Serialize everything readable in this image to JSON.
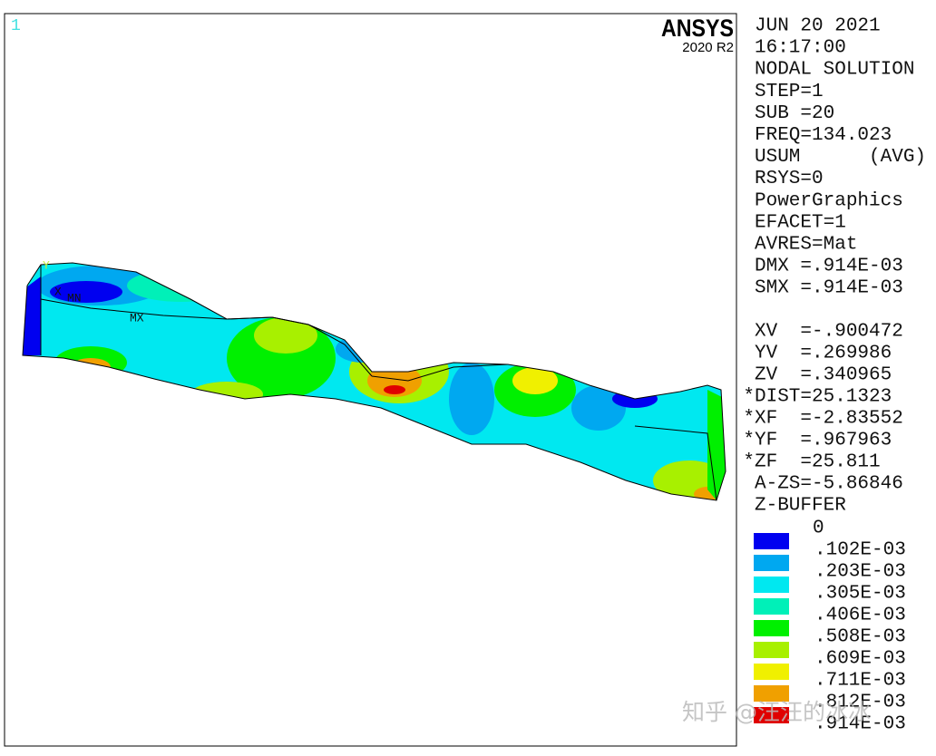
{
  "window_number": "1",
  "logo": {
    "title": "ANSYS",
    "version": "2020 R2"
  },
  "info_lines": [
    "JUN 20 2021",
    "16:17:00",
    "NODAL SOLUTION",
    "STEP=1",
    "SUB =20",
    "FREQ=134.023",
    "USUM      (AVG)",
    "RSYS=0",
    "PowerGraphics",
    "EFACET=1",
    "AVRES=Mat",
    "DMX =.914E-03",
    "SMX =.914E-03"
  ],
  "view_lines": [
    "XV  =-.900472",
    "YV  =.269986",
    "ZV  =.340965",
    "*DIST=25.1323",
    "*XF  =-2.83552",
    "*YF  =.967963",
    "*ZF  =25.811",
    "A-ZS=-5.86846",
    "Z-BUFFER"
  ],
  "legend": {
    "labels": [
      "0",
      ".102E-03",
      ".203E-03",
      ".305E-03",
      ".406E-03",
      ".508E-03",
      ".609E-03",
      ".711E-03",
      ".812E-03",
      ".914E-03"
    ],
    "colors": [
      "#0000f0",
      "#00a8f0",
      "#00e8f0",
      "#00f0b8",
      "#00f000",
      "#a8f000",
      "#f0f000",
      "#f0a000",
      "#e00000"
    ]
  },
  "plot_labels": {
    "y_axis": "Y",
    "x_axis": "X",
    "min": "MN",
    "max": "MX"
  },
  "watermark": "知乎 @汪汪的冰冰"
}
